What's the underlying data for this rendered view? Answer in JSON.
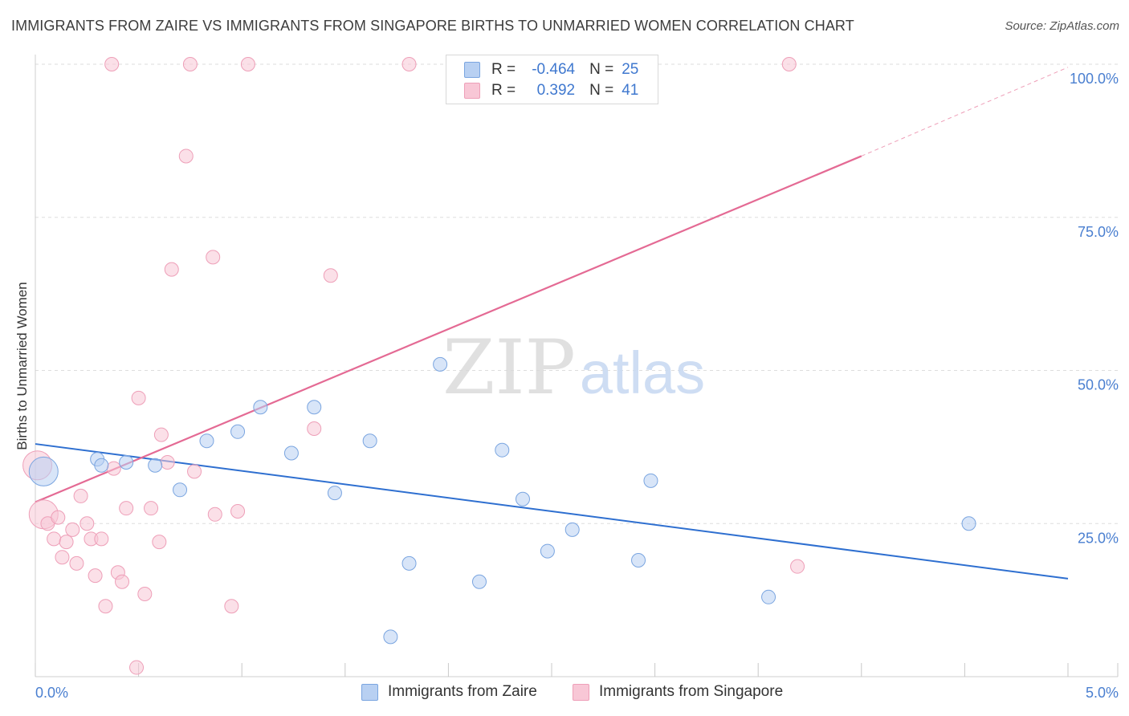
{
  "title": "IMMIGRANTS FROM ZAIRE VS IMMIGRANTS FROM SINGAPORE BIRTHS TO UNMARRIED WOMEN CORRELATION CHART",
  "source": "Source: ZipAtlas.com",
  "watermark": {
    "zip": "ZIP",
    "atlas": "atlas"
  },
  "legend": {
    "rows": [
      {
        "r_label": "R =",
        "r_value": "-0.464",
        "n_label": "N =",
        "n_value": "25"
      },
      {
        "r_label": "R =",
        "r_value": "0.392",
        "n_label": "N =",
        "n_value": "41"
      }
    ]
  },
  "colors": {
    "zaire_fill": "#b8d0f2",
    "zaire_stroke": "#7aa5e0",
    "zaire_line": "#2e6fd0",
    "singapore_fill": "#f8c7d6",
    "singapore_stroke": "#ee9fb8",
    "singapore_line": "#e46a94",
    "axis_label": "#4a7fd0",
    "grid": "#dddddd"
  },
  "chart_data": {
    "type": "scatter",
    "title": "IMMIGRANTS FROM ZAIRE VS IMMIGRANTS FROM SINGAPORE BIRTHS TO UNMARRIED WOMEN CORRELATION CHART",
    "xlabel": "",
    "ylabel": "Births to Unmarried Women",
    "xlim": [
      0,
      5
    ],
    "ylim": [
      0,
      102
    ],
    "x_tick_labels": [
      "0.0%",
      "5.0%"
    ],
    "y_ticks": [
      25,
      50,
      75,
      100
    ],
    "y_tick_labels": [
      "25.0%",
      "50.0%",
      "75.0%",
      "100.0%"
    ],
    "legend_position": "top-center",
    "series": [
      {
        "name": "Immigrants from Zaire",
        "r": -0.464,
        "n": 25,
        "trend": {
          "x": [
            0,
            5
          ],
          "y": [
            38.0,
            16.0
          ]
        },
        "points": [
          {
            "x": 0.04,
            "y": 33.5,
            "big": true
          },
          {
            "x": 0.3,
            "y": 35.5
          },
          {
            "x": 0.32,
            "y": 34.5
          },
          {
            "x": 0.44,
            "y": 35.0
          },
          {
            "x": 0.58,
            "y": 34.5
          },
          {
            "x": 0.7,
            "y": 30.5
          },
          {
            "x": 0.83,
            "y": 38.5
          },
          {
            "x": 0.98,
            "y": 40.0
          },
          {
            "x": 1.09,
            "y": 44.0
          },
          {
            "x": 1.24,
            "y": 36.5
          },
          {
            "x": 1.35,
            "y": 44.0
          },
          {
            "x": 1.45,
            "y": 30.0
          },
          {
            "x": 1.62,
            "y": 38.5
          },
          {
            "x": 1.72,
            "y": 6.5
          },
          {
            "x": 1.81,
            "y": 18.5
          },
          {
            "x": 1.96,
            "y": 51.0
          },
          {
            "x": 2.15,
            "y": 15.5
          },
          {
            "x": 2.26,
            "y": 37.0
          },
          {
            "x": 2.36,
            "y": 29.0
          },
          {
            "x": 2.48,
            "y": 20.5
          },
          {
            "x": 2.6,
            "y": 24.0
          },
          {
            "x": 2.92,
            "y": 19.0
          },
          {
            "x": 2.98,
            "y": 32.0
          },
          {
            "x": 3.55,
            "y": 13.0
          },
          {
            "x": 4.52,
            "y": 25.0
          }
        ]
      },
      {
        "name": "Immigrants from Singapore",
        "r": 0.392,
        "n": 41,
        "trend": {
          "x": [
            0,
            4.0
          ],
          "y": [
            28.5,
            85.0
          ]
        },
        "trend_dashed": {
          "x": [
            4.0,
            5.0
          ],
          "y": [
            85.0,
            99.5
          ]
        },
        "points": [
          {
            "x": 0.01,
            "y": 34.5,
            "big": true
          },
          {
            "x": 0.04,
            "y": 26.5,
            "big": true
          },
          {
            "x": 0.06,
            "y": 25.0
          },
          {
            "x": 0.09,
            "y": 22.5
          },
          {
            "x": 0.11,
            "y": 26.0
          },
          {
            "x": 0.13,
            "y": 19.5
          },
          {
            "x": 0.15,
            "y": 22.0
          },
          {
            "x": 0.18,
            "y": 24.0
          },
          {
            "x": 0.2,
            "y": 18.5
          },
          {
            "x": 0.22,
            "y": 29.5
          },
          {
            "x": 0.25,
            "y": 25.0
          },
          {
            "x": 0.27,
            "y": 22.5
          },
          {
            "x": 0.29,
            "y": 16.5
          },
          {
            "x": 0.32,
            "y": 22.5
          },
          {
            "x": 0.34,
            "y": 11.5
          },
          {
            "x": 0.38,
            "y": 34.0
          },
          {
            "x": 0.4,
            "y": 17.0
          },
          {
            "x": 0.42,
            "y": 15.5
          },
          {
            "x": 0.44,
            "y": 27.5
          },
          {
            "x": 0.49,
            "y": 1.5
          },
          {
            "x": 0.5,
            "y": 45.5
          },
          {
            "x": 0.53,
            "y": 13.5
          },
          {
            "x": 0.56,
            "y": 27.5
          },
          {
            "x": 0.6,
            "y": 22.0
          },
          {
            "x": 0.61,
            "y": 39.5
          },
          {
            "x": 0.64,
            "y": 35.0
          },
          {
            "x": 0.66,
            "y": 66.5
          },
          {
            "x": 0.73,
            "y": 85.0
          },
          {
            "x": 0.77,
            "y": 33.5
          },
          {
            "x": 0.86,
            "y": 68.5
          },
          {
            "x": 0.87,
            "y": 26.5
          },
          {
            "x": 0.95,
            "y": 11.5
          },
          {
            "x": 0.98,
            "y": 27.0
          },
          {
            "x": 0.37,
            "y": 100.0
          },
          {
            "x": 0.75,
            "y": 100.0
          },
          {
            "x": 1.03,
            "y": 100.0
          },
          {
            "x": 1.35,
            "y": 40.5
          },
          {
            "x": 1.43,
            "y": 65.5
          },
          {
            "x": 1.81,
            "y": 100.0
          },
          {
            "x": 3.65,
            "y": 100.0
          },
          {
            "x": 3.69,
            "y": 18.0
          }
        ]
      }
    ]
  },
  "bottom_legend": {
    "zaire_label": "Immigrants from Zaire",
    "singapore_label": "Immigrants from Singapore"
  }
}
